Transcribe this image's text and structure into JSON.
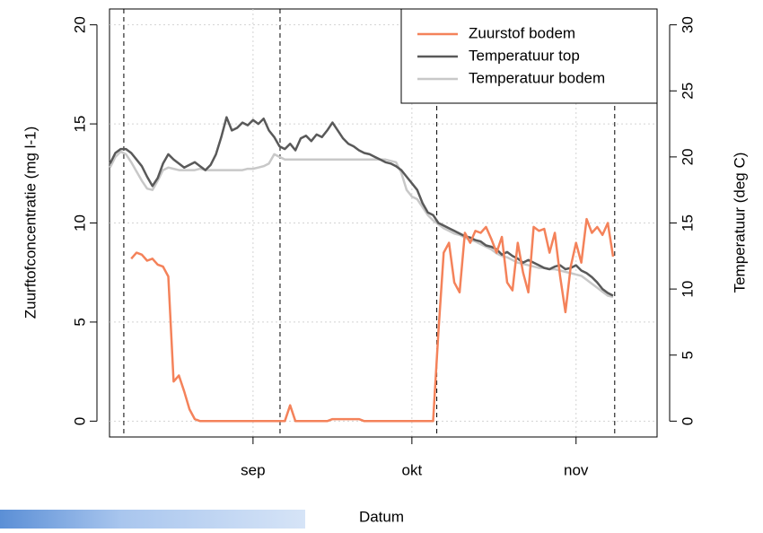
{
  "chart_data": {
    "type": "line",
    "x_label": "Datum",
    "y_label": "Zuurftofconcentratie (mg l-1)",
    "y2_label": "Temperatuur (deg C)",
    "x": [
      217,
      218,
      219,
      220,
      221,
      222,
      223,
      224,
      225,
      226,
      227,
      228,
      229,
      230,
      231,
      232,
      233,
      234,
      235,
      236,
      237,
      238,
      239,
      240,
      241,
      242,
      243,
      244,
      245,
      246,
      247,
      248,
      249,
      250,
      251,
      252,
      253,
      254,
      255,
      256,
      257,
      258,
      259,
      260,
      261,
      262,
      263,
      264,
      265,
      266,
      267,
      268,
      269,
      270,
      271,
      272,
      273,
      274,
      275,
      276,
      277,
      278,
      279,
      280,
      281,
      282,
      283,
      284,
      285,
      286,
      287,
      288,
      289,
      290,
      291,
      292,
      293,
      294,
      295,
      296,
      297,
      298,
      299,
      300,
      301,
      302,
      303,
      304,
      305,
      306,
      307,
      308,
      309,
      310,
      311,
      312
    ],
    "xlim": [
      216.9,
      320.3
    ],
    "xticks": [
      {
        "value": 244,
        "label": "sep"
      },
      {
        "value": 274,
        "label": "okt"
      },
      {
        "value": 305,
        "label": "nov"
      }
    ],
    "ylim": [
      -0.8,
      20.8
    ],
    "yticks": [
      0,
      5,
      10,
      15,
      20
    ],
    "y2lim": [
      -1.2,
      31.2
    ],
    "y2ticks": [
      0,
      5,
      10,
      15,
      20,
      25,
      30
    ],
    "grid": true,
    "legend": "top-right",
    "vlines": [
      219.6,
      249.1,
      278.7,
      312.3
    ],
    "series": [
      {
        "name": "Zuurstof bodem",
        "color": "#f4825a",
        "axis": "y",
        "values": [
          null,
          null,
          null,
          null,
          8.2,
          8.5,
          8.4,
          8.1,
          8.2,
          7.9,
          7.8,
          7.3,
          2.0,
          2.3,
          1.5,
          0.6,
          0.1,
          0,
          0,
          0,
          0,
          0,
          0,
          0,
          0,
          0,
          0,
          0,
          0,
          0,
          0,
          0,
          0,
          0,
          0.8,
          0,
          0,
          0,
          0,
          0,
          0,
          0,
          0.1,
          0.1,
          0.1,
          0.1,
          0.1,
          0.1,
          0,
          0,
          0,
          0,
          0,
          0,
          0,
          0,
          0,
          0,
          0,
          0,
          0,
          0,
          4.5,
          8.5,
          9.0,
          7.0,
          6.5,
          9.5,
          9.0,
          9.6,
          9.5,
          9.8,
          9.2,
          8.5,
          9.3,
          7.0,
          6.6,
          9.0,
          7.5,
          6.5,
          9.8,
          9.6,
          9.7,
          8.5,
          9.5,
          7.3,
          5.5,
          7.8,
          9.0,
          8.0,
          10.2,
          9.5,
          9.8,
          9.4,
          10.0,
          8.3
        ]
      },
      {
        "name": "Temperatuur top",
        "color": "#595959",
        "axis": "y2",
        "values": [
          19.5,
          20.3,
          20.6,
          20.6,
          20.3,
          19.8,
          19.3,
          18.5,
          17.8,
          18.4,
          19.5,
          20.2,
          19.8,
          19.5,
          19.2,
          19.4,
          19.6,
          19.3,
          19.0,
          19.4,
          20.2,
          21.5,
          23.0,
          22.0,
          22.2,
          22.6,
          22.4,
          22.8,
          22.5,
          22.9,
          22.0,
          21.5,
          20.8,
          20.6,
          21.0,
          20.5,
          21.4,
          21.6,
          21.2,
          21.7,
          21.5,
          22.0,
          22.6,
          22.0,
          21.4,
          21.0,
          20.8,
          20.5,
          20.3,
          20.2,
          20.0,
          19.8,
          19.6,
          19.5,
          19.3,
          19.0,
          18.5,
          18.0,
          17.5,
          16.5,
          15.8,
          15.6,
          15.0,
          14.8,
          14.6,
          14.4,
          14.2,
          14.0,
          13.9,
          13.7,
          13.6,
          13.3,
          13.2,
          13.0,
          12.6,
          12.8,
          12.5,
          12.3,
          12.0,
          12.2,
          12.0,
          11.8,
          11.6,
          11.5,
          11.7,
          11.8,
          11.5,
          11.6,
          11.8,
          11.4,
          11.2,
          10.9,
          10.5,
          10.0,
          9.7,
          9.5
        ]
      },
      {
        "name": "Temperatuur bodem",
        "color": "#c8c8c8",
        "axis": "y2",
        "values": [
          19.2,
          20.0,
          20.4,
          20.2,
          19.6,
          18.9,
          18.2,
          17.6,
          17.5,
          18.2,
          19.0,
          19.2,
          19.1,
          19.0,
          19.0,
          19.0,
          19.0,
          19.1,
          19.0,
          19.0,
          19.0,
          19.0,
          19.0,
          19.0,
          19.0,
          19.0,
          19.1,
          19.1,
          19.2,
          19.3,
          19.5,
          20.2,
          20.0,
          19.8,
          19.8,
          19.8,
          19.8,
          19.8,
          19.8,
          19.8,
          19.8,
          19.8,
          19.8,
          19.8,
          19.8,
          19.8,
          19.8,
          19.8,
          19.8,
          19.8,
          19.8,
          19.8,
          19.8,
          19.7,
          19.6,
          18.8,
          17.5,
          17.0,
          16.8,
          16.2,
          15.6,
          15.2,
          14.9,
          14.6,
          14.4,
          14.2,
          14.1,
          13.9,
          13.7,
          13.6,
          13.4,
          13.2,
          13.0,
          12.7,
          12.5,
          12.4,
          12.2,
          12.0,
          11.9,
          11.8,
          11.7,
          11.6,
          11.6,
          11.5,
          11.5,
          11.4,
          11.3,
          11.2,
          11.1,
          11.0,
          10.7,
          10.4,
          10.1,
          9.8,
          9.5,
          9.4
        ]
      }
    ]
  }
}
